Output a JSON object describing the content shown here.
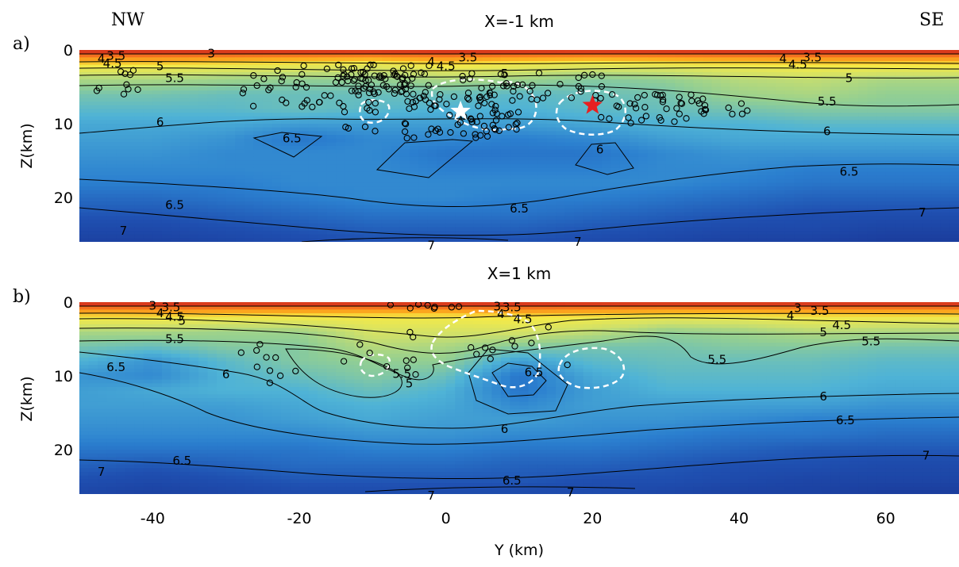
{
  "chart_data": {
    "type": "heatmap",
    "xlabel": "Y (km)",
    "ylabel": "Z(km)",
    "xlim": [
      -50,
      70
    ],
    "ylim": [
      0,
      26
    ],
    "x_ticks": [
      -40,
      -20,
      0,
      20,
      40,
      60
    ],
    "y_ticks": [
      0,
      10,
      20
    ],
    "corner_labels": {
      "left": "NW",
      "right": "SE"
    },
    "colormap": {
      "levels": [
        3,
        3.5,
        4,
        4.5,
        5,
        5.5,
        6,
        6.5,
        7,
        7.5
      ],
      "colors": [
        "#7a0000",
        "#cc1f1a",
        "#f46d1f",
        "#fcae1e",
        "#f4ea48",
        "#cfe06a",
        "#93cf92",
        "#4fb3d6",
        "#2b7fcf",
        "#1f4fb0",
        "#1a3898"
      ]
    },
    "panels": [
      {
        "id": "a",
        "tag": "a)",
        "title": "X=-1 km",
        "velocity_grid": {
          "y": [
            -50,
            -40,
            -30,
            -20,
            -10,
            0,
            10,
            20,
            30,
            40,
            50,
            60,
            70
          ],
          "z": [
            0,
            2,
            4,
            6,
            8,
            10,
            12,
            14,
            16,
            18,
            20,
            22,
            24,
            26
          ],
          "v": [
            [
              3.0,
              3.0,
              3.0,
              3.0,
              3.0,
              3.0,
              3.0,
              3.0,
              3.0,
              3.0,
              3.0,
              3.0,
              3.0
            ],
            [
              4.4,
              4.4,
              4.5,
              4.6,
              4.7,
              4.4,
              4.6,
              4.7,
              4.6,
              4.5,
              4.4,
              4.4,
              4.4
            ],
            [
              5.3,
              5.3,
              5.4,
              5.5,
              5.5,
              5.3,
              5.4,
              5.6,
              5.5,
              5.2,
              5.1,
              5.3,
              5.3
            ],
            [
              5.7,
              5.7,
              5.8,
              5.8,
              5.8,
              5.8,
              5.9,
              5.8,
              5.7,
              5.4,
              5.3,
              5.5,
              5.5
            ],
            [
              5.9,
              5.9,
              5.9,
              5.8,
              5.9,
              6.0,
              6.0,
              5.9,
              5.8,
              5.7,
              5.6,
              5.6,
              5.6
            ],
            [
              6.1,
              6.1,
              6.1,
              6.2,
              6.2,
              6.2,
              6.2,
              6.1,
              6.0,
              6.0,
              5.9,
              5.9,
              5.9
            ],
            [
              6.2,
              6.2,
              6.3,
              6.6,
              6.4,
              6.4,
              6.5,
              6.4,
              6.2,
              6.1,
              6.1,
              6.1,
              6.1
            ],
            [
              6.3,
              6.3,
              6.4,
              6.4,
              6.4,
              6.6,
              6.6,
              6.6,
              6.4,
              6.3,
              6.3,
              6.3,
              6.3
            ],
            [
              6.4,
              6.4,
              6.4,
              6.4,
              6.4,
              6.5,
              6.5,
              6.5,
              6.4,
              6.4,
              6.5,
              6.5,
              6.5
            ],
            [
              6.5,
              6.5,
              6.5,
              6.4,
              6.4,
              6.4,
              6.4,
              6.4,
              6.4,
              6.5,
              6.6,
              6.6,
              6.6
            ],
            [
              6.7,
              6.7,
              6.6,
              6.5,
              6.4,
              6.4,
              6.5,
              6.5,
              6.6,
              6.7,
              6.8,
              6.8,
              6.8
            ],
            [
              6.9,
              6.9,
              6.8,
              6.7,
              6.6,
              6.6,
              6.6,
              6.7,
              6.8,
              6.9,
              7.0,
              7.0,
              7.0
            ],
            [
              7.1,
              7.1,
              7.0,
              6.9,
              6.8,
              6.8,
              6.8,
              6.9,
              7.0,
              7.1,
              7.1,
              7.2,
              7.2
            ],
            [
              7.3,
              7.3,
              7.2,
              7.1,
              7.0,
              7.0,
              7.0,
              7.1,
              7.2,
              7.3,
              7.3,
              7.4,
              7.4
            ]
          ]
        },
        "contour_labels": [
          {
            "text": "3",
            "y": -32,
            "z": 0.5
          },
          {
            "text": "4",
            "y": -47,
            "z": 1.2
          },
          {
            "text": "3.5",
            "y": -45,
            "z": 0.8
          },
          {
            "text": "4.5",
            "y": -45.5,
            "z": 1.8
          },
          {
            "text": "5",
            "y": -39,
            "z": 2.2
          },
          {
            "text": "5.5",
            "y": -37,
            "z": 3.8
          },
          {
            "text": "4",
            "y": -2,
            "z": 1.6
          },
          {
            "text": "4.5",
            "y": 0,
            "z": 2.2
          },
          {
            "text": "3.5",
            "y": 3,
            "z": 1.0
          },
          {
            "text": "5",
            "y": 8,
            "z": 3.2
          },
          {
            "text": "6",
            "y": 6,
            "z": 6.0
          },
          {
            "text": "4",
            "y": 46,
            "z": 1.2
          },
          {
            "text": "3.5",
            "y": 50,
            "z": 1.0
          },
          {
            "text": "4.5",
            "y": 48,
            "z": 2.0
          },
          {
            "text": "5",
            "y": 55,
            "z": 3.8
          },
          {
            "text": "5.5",
            "y": 52,
            "z": 7.0
          },
          {
            "text": "6",
            "y": -39,
            "z": 9.8
          },
          {
            "text": "6",
            "y": 52,
            "z": 11.0
          },
          {
            "text": "6.5",
            "y": -21,
            "z": 12.0
          },
          {
            "text": "6",
            "y": 21,
            "z": 13.5
          },
          {
            "text": "6.5",
            "y": 55,
            "z": 16.5
          },
          {
            "text": "6.5",
            "y": -37,
            "z": 21.0
          },
          {
            "text": "6.5",
            "y": 10,
            "z": 21.5
          },
          {
            "text": "7",
            "y": 65,
            "z": 22.0
          },
          {
            "text": "7",
            "y": -44,
            "z": 24.5
          },
          {
            "text": "7",
            "y": 18,
            "z": 26.0
          },
          {
            "text": "7",
            "y": -2,
            "z": 26.5
          }
        ],
        "mainshocks": [
          {
            "y": 2,
            "z": 8.3,
            "color": "#ffffff"
          },
          {
            "y": 20,
            "z": 7.5,
            "color": "#e82020"
          }
        ]
      },
      {
        "id": "b",
        "tag": "b)",
        "title": "X=1 km",
        "velocity_grid": {
          "y": [
            -50,
            -40,
            -30,
            -20,
            -10,
            0,
            10,
            20,
            30,
            40,
            50,
            60,
            70
          ],
          "z": [
            0,
            2,
            4,
            6,
            8,
            10,
            12,
            14,
            16,
            18,
            20,
            22,
            24,
            26
          ],
          "v": [
            [
              3.0,
              3.0,
              3.0,
              3.0,
              3.0,
              3.0,
              3.0,
              3.0,
              3.0,
              3.0,
              3.0,
              3.0,
              3.0
            ],
            [
              4.4,
              4.4,
              4.5,
              4.5,
              4.5,
              4.5,
              4.4,
              4.5,
              4.6,
              4.6,
              4.5,
              4.5,
              4.5
            ],
            [
              5.3,
              5.3,
              5.4,
              5.4,
              4.9,
              4.9,
              4.9,
              5.1,
              5.5,
              5.4,
              5.2,
              5.3,
              5.3
            ],
            [
              5.7,
              5.8,
              5.6,
              5.6,
              5.2,
              5.3,
              5.6,
              5.7,
              5.7,
              5.6,
              5.6,
              5.7,
              5.7
            ],
            [
              6.0,
              6.3,
              5.9,
              5.6,
              5.5,
              5.5,
              6.2,
              5.9,
              5.8,
              5.8,
              5.8,
              5.9,
              5.9
            ],
            [
              6.3,
              6.4,
              6.0,
              5.8,
              5.6,
              5.8,
              6.6,
              6.1,
              5.9,
              5.9,
              5.9,
              6.0,
              6.0
            ],
            [
              6.2,
              6.1,
              6.0,
              6.0,
              5.8,
              6.0,
              6.6,
              6.2,
              6.0,
              6.0,
              6.0,
              6.1,
              6.1
            ],
            [
              6.2,
              6.2,
              6.2,
              6.1,
              6.0,
              6.1,
              6.4,
              6.2,
              6.2,
              6.2,
              6.2,
              6.3,
              6.3
            ],
            [
              6.3,
              6.3,
              6.3,
              6.2,
              6.1,
              6.2,
              6.2,
              6.3,
              6.3,
              6.4,
              6.5,
              6.5,
              6.5
            ],
            [
              6.4,
              6.4,
              6.4,
              6.4,
              6.3,
              6.3,
              6.4,
              6.4,
              6.5,
              6.6,
              6.6,
              6.7,
              6.7
            ],
            [
              6.6,
              6.6,
              6.6,
              6.6,
              6.5,
              6.5,
              6.6,
              6.6,
              6.7,
              6.8,
              6.9,
              6.9,
              6.9
            ],
            [
              6.8,
              6.9,
              6.8,
              6.7,
              6.7,
              6.7,
              6.8,
              6.8,
              6.9,
              7.0,
              7.0,
              7.1,
              7.1
            ],
            [
              7.0,
              7.1,
              7.0,
              6.9,
              6.9,
              6.9,
              6.9,
              7.0,
              7.0,
              7.1,
              7.2,
              7.2,
              7.2
            ],
            [
              7.2,
              7.3,
              7.2,
              7.1,
              7.1,
              7.1,
              7.1,
              7.1,
              7.2,
              7.3,
              7.3,
              7.4,
              7.4
            ]
          ]
        },
        "contour_labels": [
          {
            "text": "3",
            "y": -40,
            "z": 0.5
          },
          {
            "text": "3.5",
            "y": -37.5,
            "z": 0.7
          },
          {
            "text": "4",
            "y": -39,
            "z": 1.5
          },
          {
            "text": "4.5",
            "y": -37,
            "z": 2.0
          },
          {
            "text": "5",
            "y": -36,
            "z": 2.5
          },
          {
            "text": "5.5",
            "y": -37,
            "z": 5.0
          },
          {
            "text": "3",
            "y": 7,
            "z": 0.6
          },
          {
            "text": "3.5",
            "y": 9,
            "z": 0.7
          },
          {
            "text": "4",
            "y": 7.5,
            "z": 1.6
          },
          {
            "text": "4.5",
            "y": 10.5,
            "z": 2.3
          },
          {
            "text": "3",
            "y": 48,
            "z": 0.8
          },
          {
            "text": "3.5",
            "y": 51,
            "z": 1.2
          },
          {
            "text": "4",
            "y": 47,
            "z": 1.8
          },
          {
            "text": "4.5",
            "y": 54,
            "z": 3.1
          },
          {
            "text": "5",
            "y": 51.5,
            "z": 4.1
          },
          {
            "text": "5.5",
            "y": 58,
            "z": 5.3
          },
          {
            "text": "5.5",
            "y": 37,
            "z": 7.8
          },
          {
            "text": "6.5",
            "y": -45,
            "z": 8.8
          },
          {
            "text": "6",
            "y": -30,
            "z": 9.8
          },
          {
            "text": "5.5",
            "y": -6,
            "z": 9.7
          },
          {
            "text": "5",
            "y": -5,
            "z": 11.0
          },
          {
            "text": "6.5",
            "y": 12,
            "z": 9.5
          },
          {
            "text": "6",
            "y": 51.5,
            "z": 12.8
          },
          {
            "text": "6",
            "y": 8,
            "z": 17.2
          },
          {
            "text": "6.5",
            "y": 54.5,
            "z": 16.0
          },
          {
            "text": "6.5",
            "y": -36,
            "z": 21.5
          },
          {
            "text": "7",
            "y": 65.5,
            "z": 20.8
          },
          {
            "text": "7",
            "y": -47,
            "z": 23.0
          },
          {
            "text": "6.5",
            "y": 9,
            "z": 24.2
          },
          {
            "text": "7",
            "y": 17,
            "z": 25.8
          },
          {
            "text": "7",
            "y": -2,
            "z": 26.2
          }
        ],
        "mainshocks": []
      }
    ]
  }
}
